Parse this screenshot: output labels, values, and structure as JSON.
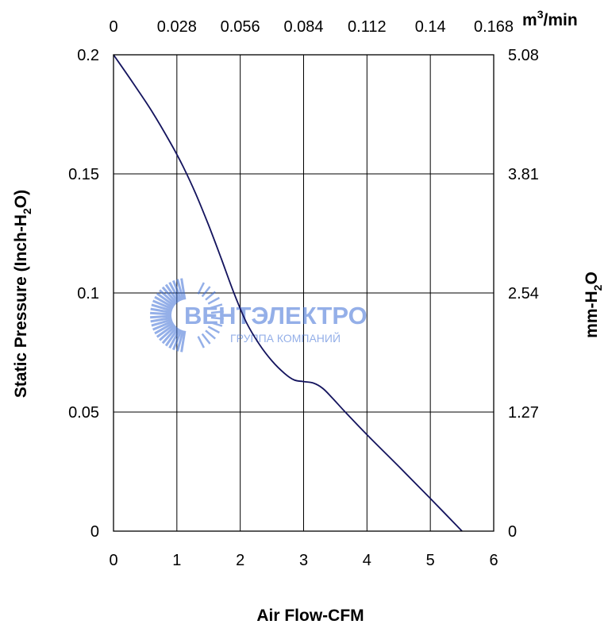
{
  "chart_data": {
    "type": "line",
    "title": "",
    "xlabel": "Air Flow-CFM",
    "ylabel_left_main": "Static Pressure (Inch-H",
    "ylabel_left_sub": "2",
    "ylabel_left_end": "O)",
    "ylabel_right_main": "mm-H",
    "ylabel_right_sub": "2",
    "ylabel_right_end": "O",
    "x2label_main": "m",
    "x2label_sup": "3",
    "x2label_end": "/min",
    "xlim": [
      0,
      6
    ],
    "ylim": [
      0,
      0.2
    ],
    "grid": true,
    "x_ticks": [
      "0",
      "1",
      "2",
      "3",
      "4",
      "5",
      "6"
    ],
    "y_ticks": [
      "0",
      "0.05",
      "0.1",
      "0.15",
      "0.2"
    ],
    "x2_ticks": [
      "0",
      "0.028",
      "0.056",
      "0.084",
      "0.112",
      "0.14",
      "0.168"
    ],
    "y2_ticks": [
      "0",
      "1.27",
      "2.54",
      "3.81",
      "5.08"
    ],
    "series": [
      {
        "color": "#14145e",
        "x": [
          0,
          0.3,
          0.6,
          0.9,
          1.1,
          1.3,
          1.5,
          1.7,
          1.9,
          2.1,
          2.3,
          2.5,
          2.7,
          2.85,
          3.0,
          3.15,
          3.3,
          3.45,
          3.65,
          4.0,
          4.5,
          5.0,
          5.5
        ],
        "y": [
          0.2,
          0.1885,
          0.1765,
          0.163,
          0.153,
          0.1415,
          0.1285,
          0.1145,
          0.1,
          0.0875,
          0.0785,
          0.0715,
          0.0662,
          0.0635,
          0.0628,
          0.0622,
          0.06,
          0.056,
          0.0502,
          0.0405,
          0.0272,
          0.0137,
          0.0
        ]
      }
    ]
  },
  "watermark": {
    "brand": "ВЕНТЭЛЕКТРО",
    "tagline": "ГРУППА КОМПАНИЙ",
    "color": "#3d6fd6",
    "logo_icon": "fan-sunburst-icon"
  }
}
